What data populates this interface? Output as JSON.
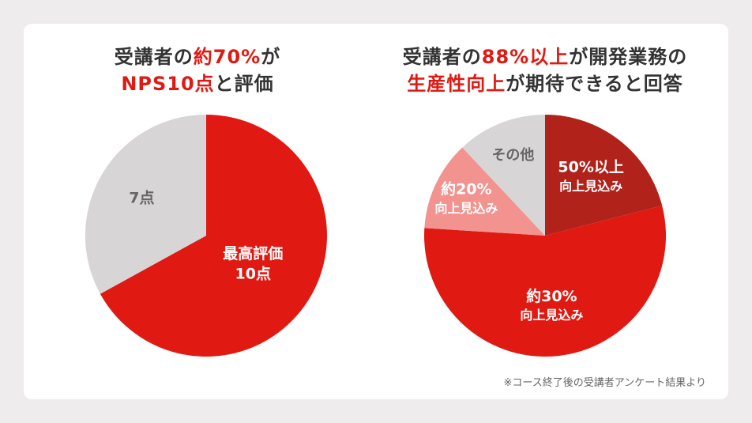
{
  "colors": {
    "accent": "#e01a12",
    "dark_red": "#b0221a",
    "pink": "#f2938f",
    "gray": "#d7d5d5",
    "text": "#333333"
  },
  "left": {
    "title_line1": {
      "pre": "受講者の",
      "highlight": "約70%",
      "post": "が"
    },
    "title_line2": {
      "highlight": "NPS10点",
      "post": "と評価"
    }
  },
  "right": {
    "title_line1": {
      "pre": "受講者の",
      "highlight": "88%以上",
      "post": "が開発業務の"
    },
    "title_line2": {
      "highlight": "生産性向上",
      "post": "が期待できると回答"
    }
  },
  "chart_data": [
    {
      "type": "pie",
      "title": "受講者の約70%がNPS10点と評価",
      "slices": [
        {
          "label_lines": [
            "最高評価",
            "10点"
          ],
          "value": 67,
          "color": "#e01a12",
          "text_color": "#ffffff"
        },
        {
          "label_lines": [
            "7点"
          ],
          "value": 33,
          "color": "#d7d5d5",
          "text_color": "#666666"
        }
      ]
    },
    {
      "type": "pie",
      "title": "受講者の88%以上が開発業務の生産性向上が期待できると回答",
      "slices": [
        {
          "label_lines": [
            "50%以上",
            "向上見込み"
          ],
          "value": 21,
          "color": "#b0221a",
          "text_color": "#ffffff"
        },
        {
          "label_lines": [
            "約30%",
            "向上見込み"
          ],
          "value": 55,
          "color": "#e01a12",
          "text_color": "#ffffff"
        },
        {
          "label_lines": [
            "約20%",
            "向上見込み"
          ],
          "value": 12,
          "color": "#f2938f",
          "text_color": "#ffffff"
        },
        {
          "label_lines": [
            "その他"
          ],
          "value": 12,
          "color": "#d7d5d5",
          "text_color": "#666666"
        }
      ]
    }
  ],
  "footnote": "※コース終了後の受講者アンケート結果より"
}
